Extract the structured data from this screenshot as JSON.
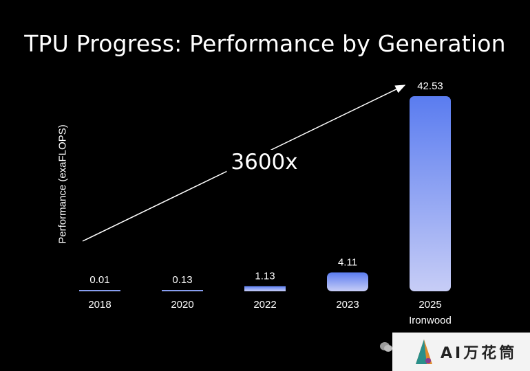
{
  "title": "TPU Progress: Performance by Generation",
  "chart_data": {
    "type": "bar",
    "categories": [
      "2018",
      "2020",
      "2022",
      "2023",
      "2025"
    ],
    "category_sublabels": [
      "",
      "",
      "",
      "",
      "Ironwood"
    ],
    "values": [
      0.01,
      0.13,
      1.13,
      4.11,
      42.53
    ],
    "value_labels": [
      "0.01",
      "0.13",
      "1.13",
      "4.11",
      "42.53"
    ],
    "title": "TPU Progress: Performance by Generation",
    "xlabel": "",
    "ylabel": "Performance (exaFLOPS)",
    "ylim": [
      0,
      42.53
    ],
    "grid": false,
    "annotation": "3600x",
    "colors": {
      "background": "#000000",
      "bar_top": "#5a7cf0",
      "bar_bottom": "#c7cdf6",
      "text": "#ffffff"
    }
  },
  "watermark": {
    "text": "AI万花筒",
    "icon": "wechat-icon"
  }
}
